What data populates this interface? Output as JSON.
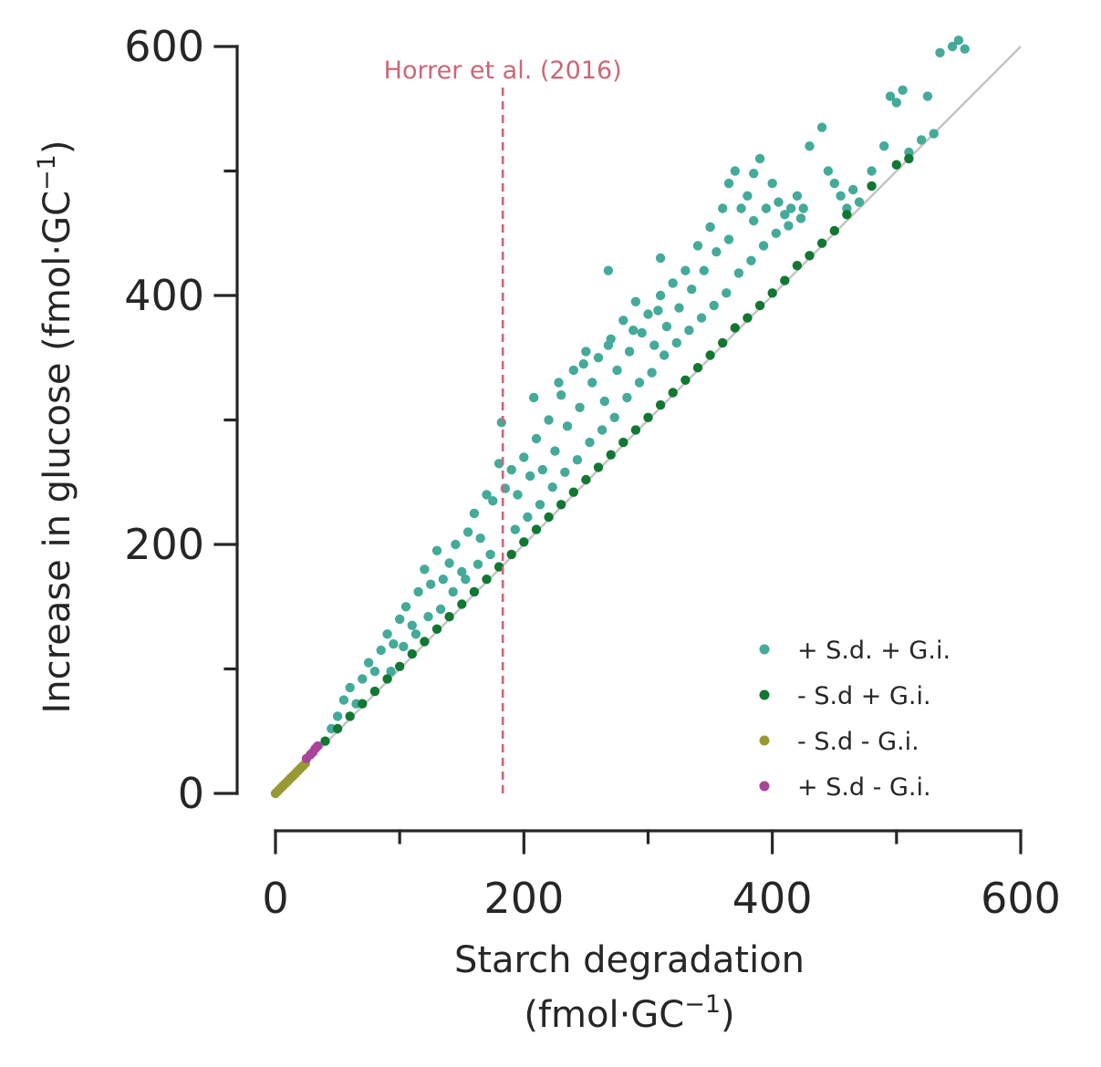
{
  "chart_data": {
    "type": "scatter",
    "title": "",
    "xlabel": "Starch degradation",
    "xlabel_unit": "(fmol·GC",
    "xlabel_unit_sup": "−1",
    "xlabel_unit_end": ")",
    "ylabel": "Increase in glucose (fmol·GC",
    "ylabel_sup": "−1",
    "ylabel_end": ")",
    "xlim": [
      0,
      600
    ],
    "ylim": [
      0,
      600
    ],
    "xticks": [
      0,
      200,
      400,
      600
    ],
    "xticks_minor": [
      100,
      300,
      500
    ],
    "yticks": [
      0,
      200,
      400,
      600
    ],
    "yticks_minor": [
      100,
      300,
      500
    ],
    "x_tick_labels": [
      "0",
      "200",
      "400",
      "600"
    ],
    "y_tick_labels": [
      "0",
      "200",
      "400",
      "600"
    ],
    "grid": false,
    "legend_position": "bottom-right",
    "reference_line": {
      "type": "identity",
      "from": [
        0,
        0
      ],
      "to": [
        600,
        600
      ],
      "color": "#c4c4c4"
    },
    "annotation": {
      "text": "Horrer et al. (2016)",
      "x": 183,
      "y_top": 567,
      "color": "#cc6677"
    },
    "series": [
      {
        "name": "+ S.d. + G.i.",
        "color": "#44aa99",
        "points": [
          [
            45,
            52
          ],
          [
            50,
            62
          ],
          [
            55,
            75
          ],
          [
            60,
            85
          ],
          [
            65,
            72
          ],
          [
            70,
            92
          ],
          [
            75,
            105
          ],
          [
            80,
            98
          ],
          [
            85,
            115
          ],
          [
            90,
            128
          ],
          [
            95,
            120
          ],
          [
            100,
            140
          ],
          [
            105,
            150
          ],
          [
            110,
            135
          ],
          [
            115,
            162
          ],
          [
            120,
            180
          ],
          [
            125,
            168
          ],
          [
            130,
            195
          ],
          [
            135,
            172
          ],
          [
            140,
            185
          ],
          [
            145,
            200
          ],
          [
            150,
            178
          ],
          [
            155,
            210
          ],
          [
            160,
            225
          ],
          [
            165,
            205
          ],
          [
            170,
            240
          ],
          [
            175,
            235
          ],
          [
            180,
            265
          ],
          [
            182,
            298
          ],
          [
            185,
            245
          ],
          [
            190,
            260
          ],
          [
            195,
            240
          ],
          [
            200,
            270
          ],
          [
            205,
            255
          ],
          [
            210,
            285
          ],
          [
            215,
            260
          ],
          [
            220,
            300
          ],
          [
            225,
            275
          ],
          [
            230,
            320
          ],
          [
            235,
            295
          ],
          [
            240,
            340
          ],
          [
            245,
            310
          ],
          [
            250,
            355
          ],
          [
            255,
            330
          ],
          [
            260,
            350
          ],
          [
            265,
            315
          ],
          [
            270,
            365
          ],
          [
            275,
            340
          ],
          [
            280,
            380
          ],
          [
            285,
            355
          ],
          [
            290,
            395
          ],
          [
            295,
            370
          ],
          [
            300,
            385
          ],
          [
            305,
            360
          ],
          [
            310,
            400
          ],
          [
            315,
            375
          ],
          [
            320,
            410
          ],
          [
            325,
            390
          ],
          [
            330,
            420
          ],
          [
            335,
            405
          ],
          [
            340,
            440
          ],
          [
            345,
            420
          ],
          [
            350,
            455
          ],
          [
            355,
            435
          ],
          [
            360,
            470
          ],
          [
            365,
            445
          ],
          [
            370,
            500
          ],
          [
            375,
            470
          ],
          [
            380,
            480
          ],
          [
            385,
            460
          ],
          [
            390,
            510
          ],
          [
            395,
            470
          ],
          [
            400,
            490
          ],
          [
            405,
            475
          ],
          [
            410,
            465
          ],
          [
            415,
            470
          ],
          [
            420,
            480
          ],
          [
            425,
            470
          ],
          [
            430,
            520
          ],
          [
            440,
            535
          ],
          [
            445,
            500
          ],
          [
            450,
            490
          ],
          [
            455,
            480
          ],
          [
            460,
            470
          ],
          [
            465,
            485
          ],
          [
            470,
            475
          ],
          [
            480,
            500
          ],
          [
            490,
            520
          ],
          [
            495,
            560
          ],
          [
            500,
            555
          ],
          [
            505,
            565
          ],
          [
            510,
            515
          ],
          [
            520,
            525
          ],
          [
            525,
            560
          ],
          [
            530,
            530
          ],
          [
            535,
            595
          ],
          [
            545,
            600
          ],
          [
            550,
            605
          ],
          [
            555,
            598
          ],
          [
            93,
            98
          ],
          [
            103,
            118
          ],
          [
            113,
            128
          ],
          [
            123,
            142
          ],
          [
            133,
            148
          ],
          [
            143,
            162
          ],
          [
            153,
            172
          ],
          [
            163,
            184
          ],
          [
            173,
            192
          ],
          [
            193,
            212
          ],
          [
            203,
            222
          ],
          [
            213,
            232
          ],
          [
            223,
            246
          ],
          [
            233,
            258
          ],
          [
            243,
            268
          ],
          [
            253,
            282
          ],
          [
            263,
            292
          ],
          [
            273,
            302
          ],
          [
            283,
            318
          ],
          [
            293,
            330
          ],
          [
            303,
            338
          ],
          [
            313,
            352
          ],
          [
            323,
            362
          ],
          [
            333,
            372
          ],
          [
            343,
            382
          ],
          [
            353,
            392
          ],
          [
            363,
            402
          ],
          [
            373,
            418
          ],
          [
            383,
            428
          ],
          [
            393,
            440
          ],
          [
            403,
            450
          ],
          [
            413,
            456
          ],
          [
            423,
            462
          ],
          [
            208,
            318
          ],
          [
            228,
            330
          ],
          [
            248,
            345
          ],
          [
            268,
            360
          ],
          [
            288,
            372
          ],
          [
            308,
            388
          ],
          [
            268,
            420
          ],
          [
            310,
            430
          ],
          [
            350,
            455
          ],
          [
            365,
            490
          ],
          [
            385,
            498
          ]
        ]
      },
      {
        "name": "- S.d + G.i.",
        "color": "#117733",
        "points": [
          [
            40,
            42
          ],
          [
            50,
            52
          ],
          [
            60,
            62
          ],
          [
            70,
            72
          ],
          [
            80,
            82
          ],
          [
            90,
            92
          ],
          [
            100,
            102
          ],
          [
            110,
            112
          ],
          [
            120,
            122
          ],
          [
            130,
            132
          ],
          [
            140,
            142
          ],
          [
            150,
            152
          ],
          [
            160,
            162
          ],
          [
            170,
            172
          ],
          [
            180,
            182
          ],
          [
            190,
            192
          ],
          [
            200,
            202
          ],
          [
            210,
            212
          ],
          [
            220,
            222
          ],
          [
            230,
            232
          ],
          [
            240,
            242
          ],
          [
            250,
            252
          ],
          [
            260,
            262
          ],
          [
            270,
            272
          ],
          [
            280,
            282
          ],
          [
            290,
            292
          ],
          [
            300,
            302
          ],
          [
            310,
            312
          ],
          [
            320,
            322
          ],
          [
            330,
            332
          ],
          [
            340,
            342
          ],
          [
            350,
            352
          ],
          [
            360,
            362
          ],
          [
            370,
            374
          ],
          [
            380,
            382
          ],
          [
            390,
            392
          ],
          [
            400,
            402
          ],
          [
            410,
            412
          ],
          [
            420,
            424
          ],
          [
            430,
            432
          ],
          [
            440,
            442
          ],
          [
            450,
            452
          ],
          [
            460,
            465
          ],
          [
            480,
            488
          ],
          [
            500,
            505
          ],
          [
            510,
            510
          ]
        ]
      },
      {
        "name": "- S.d - G.i.",
        "color": "#999933",
        "points": [
          [
            0,
            0
          ],
          [
            2,
            2
          ],
          [
            4,
            4
          ],
          [
            6,
            6
          ],
          [
            8,
            8
          ],
          [
            10,
            10
          ],
          [
            12,
            12
          ],
          [
            14,
            14
          ],
          [
            16,
            16
          ],
          [
            18,
            18
          ],
          [
            20,
            20
          ],
          [
            22,
            22
          ],
          [
            24,
            24
          ]
        ]
      },
      {
        "name": "+ S.d - G.i.",
        "color": "#aa4499",
        "points": [
          [
            25,
            28
          ],
          [
            28,
            31
          ],
          [
            30,
            33
          ],
          [
            32,
            36
          ],
          [
            34,
            38
          ]
        ]
      }
    ]
  }
}
